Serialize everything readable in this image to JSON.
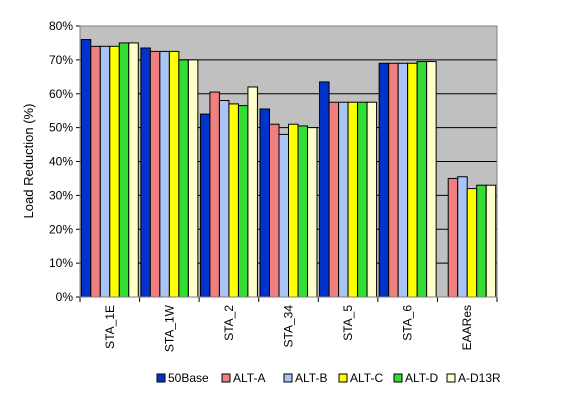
{
  "chart_data": {
    "type": "bar",
    "title": "",
    "xlabel": "",
    "ylabel": "Load Reduction (%)",
    "ylim": [
      0,
      80
    ],
    "y_ticks": [
      "0%",
      "10%",
      "20%",
      "30%",
      "40%",
      "50%",
      "60%",
      "70%",
      "80%"
    ],
    "categories": [
      "STA_1E",
      "STA_1W",
      "STA_2",
      "STA_34",
      "STA_5",
      "STA_6",
      "EAARes"
    ],
    "grid": true,
    "legend_position": "bottom",
    "series": [
      {
        "name": "50Base",
        "color": "#0033cc",
        "values": [
          76,
          73.5,
          54,
          55.5,
          63.5,
          69,
          null
        ]
      },
      {
        "name": "ALT-A",
        "color": "#f08080",
        "values": [
          74,
          72.5,
          60.5,
          51,
          57.5,
          69,
          35
        ]
      },
      {
        "name": "ALT-B",
        "color": "#a9c4f5",
        "values": [
          74,
          72.5,
          58,
          48,
          57.5,
          69,
          35.5
        ]
      },
      {
        "name": "ALT-C",
        "color": "#ffff00",
        "values": [
          74,
          72.5,
          57,
          51,
          57.5,
          69,
          32
        ]
      },
      {
        "name": "ALT-D",
        "color": "#33dd33",
        "values": [
          75,
          70,
          56.5,
          50.5,
          57.5,
          69.5,
          33
        ]
      },
      {
        "name": "A-D13R",
        "color": "#ffffcc",
        "values": [
          75,
          70,
          62,
          50,
          57.5,
          69.5,
          33
        ]
      }
    ]
  }
}
